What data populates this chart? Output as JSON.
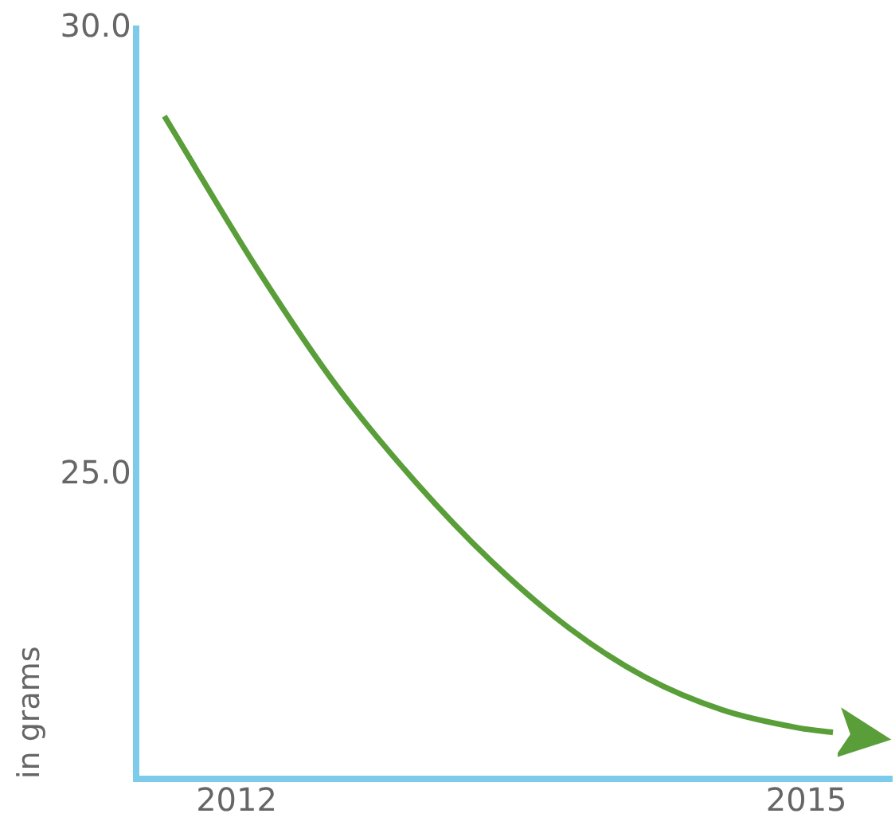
{
  "chart_data": {
    "type": "line",
    "ylabel": "in grams",
    "series": [
      {
        "color": "#5a9e3a",
        "x": [
          2011.62,
          2012.13,
          2012.53,
          2012.94,
          2013.34,
          2013.75,
          2014.15,
          2014.56,
          2014.96,
          2015.14
        ],
        "values": [
          29.02,
          27.24,
          25.99,
          24.93,
          24.04,
          23.29,
          22.74,
          22.37,
          22.17,
          22.12
        ]
      }
    ],
    "xlim": [
      2011.47,
      2015.45
    ],
    "xticks": [
      2012,
      2015
    ],
    "ylim": [
      21.6,
      30
    ],
    "yticks": [
      {
        "value": 30,
        "label": "30.0"
      },
      {
        "value": 25,
        "label": "25.0"
      }
    ],
    "grid": false,
    "legend": false,
    "marker": "none",
    "line_style": "solid"
  }
}
